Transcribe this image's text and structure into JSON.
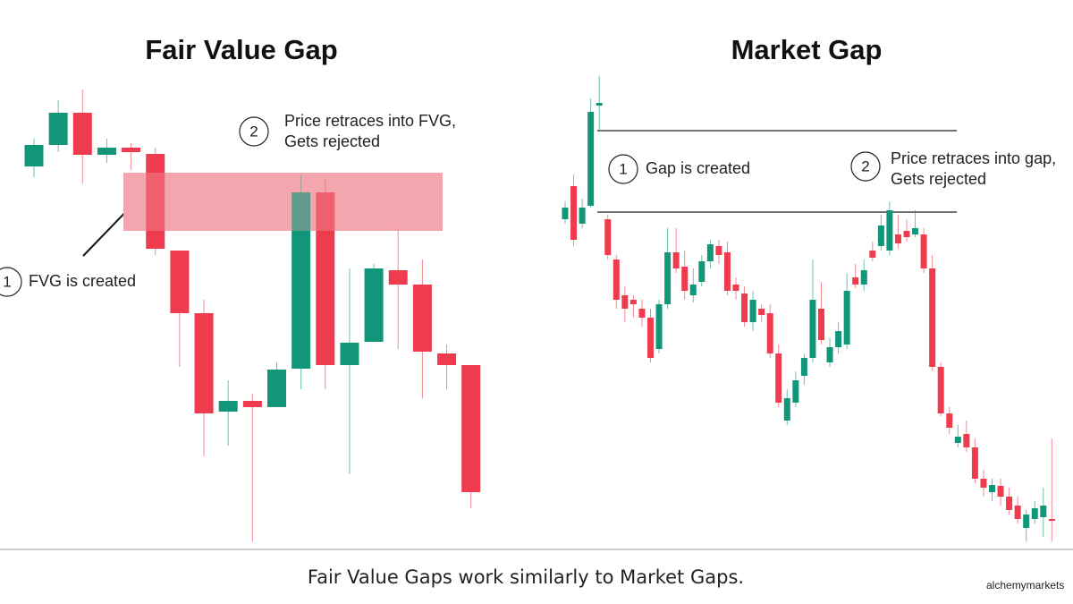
{
  "caption": "Fair Value Gaps work similarly to Market Gaps.",
  "watermark": "alchemymarkets",
  "chart_data": [
    {
      "type": "candlestick",
      "title": "Fair Value Gap",
      "ylim": [
        85,
        625
      ],
      "up_color": "#12967a",
      "down_color": "#ee3b4d",
      "zone_color": "#f4a6ae",
      "open": [
        514,
        538,
        574,
        527,
        535,
        528,
        420,
        350,
        240,
        252,
        245,
        288,
        485,
        292,
        318,
        398,
        382,
        305,
        292
      ],
      "high": [
        545,
        588,
        600,
        545,
        540,
        535,
        420,
        365,
        275,
        260,
        295,
        505,
        500,
        400,
        405,
        445,
        410,
        315,
        292
      ],
      "low": [
        502,
        530,
        495,
        518,
        510,
        415,
        290,
        190,
        202,
        95,
        245,
        265,
        265,
        170,
        318,
        310,
        255,
        265,
        132
      ],
      "close": [
        538,
        574,
        527,
        535,
        530,
        422,
        350,
        238,
        252,
        245,
        287,
        485,
        292,
        317,
        400,
        382,
        307,
        292,
        150
      ],
      "zone": [
        442,
        507
      ],
      "annotations": [
        {
          "label": "1",
          "text": [
            "FVG is created"
          ]
        },
        {
          "label": "2",
          "text": [
            "Price retraces into FVG,",
            "Gets rejected"
          ]
        }
      ]
    },
    {
      "type": "candlestick",
      "title": "Market Gap",
      "ylim": [
        85,
        625
      ],
      "up_color": "#12967a",
      "down_color": "#ee3b4d",
      "open": [
        455,
        492,
        450,
        470,
        582,
        455,
        410,
        370,
        365,
        355,
        345,
        310,
        360,
        418,
        402,
        370,
        385,
        408,
        425,
        418,
        382,
        372,
        340,
        355,
        350,
        305,
        230,
        250,
        280,
        300,
        355,
        295,
        312,
        315,
        390,
        382,
        420,
        425,
        420,
        438,
        442,
        438,
        438,
        400,
        290,
        238,
        205,
        215,
        200,
        165,
        150,
        157,
        145,
        135,
        110,
        120,
        122,
        120
      ],
      "high": [
        475,
        505,
        478,
        590,
        615,
        460,
        415,
        380,
        370,
        365,
        355,
        365,
        445,
        445,
        420,
        400,
        415,
        432,
        432,
        430,
        390,
        380,
        375,
        360,
        360,
        315,
        265,
        285,
        305,
        410,
        385,
        322,
        340,
        395,
        405,
        410,
        430,
        460,
        475,
        460,
        455,
        465,
        445,
        415,
        295,
        245,
        225,
        230,
        210,
        175,
        165,
        165,
        155,
        145,
        130,
        140,
        155,
        210
      ],
      "low": [
        450,
        425,
        445,
        468,
        555,
        410,
        355,
        340,
        345,
        335,
        295,
        305,
        355,
        395,
        365,
        362,
        380,
        400,
        405,
        370,
        365,
        335,
        330,
        340,
        300,
        245,
        225,
        245,
        270,
        295,
        315,
        290,
        305,
        310,
        378,
        375,
        408,
        420,
        415,
        422,
        430,
        435,
        395,
        285,
        235,
        215,
        200,
        195,
        160,
        145,
        140,
        135,
        125,
        115,
        95,
        115,
        100,
        95
      ],
      "close": [
        468,
        432,
        468,
        575,
        585,
        415,
        365,
        355,
        360,
        345,
        300,
        360,
        418,
        400,
        375,
        382,
        408,
        427,
        415,
        375,
        375,
        340,
        365,
        348,
        305,
        250,
        255,
        275,
        300,
        365,
        320,
        312,
        330,
        375,
        382,
        398,
        412,
        448,
        465,
        428,
        435,
        445,
        400,
        290,
        238,
        222,
        212,
        200,
        165,
        155,
        158,
        145,
        130,
        120,
        125,
        132,
        135,
        118
      ],
      "levels": [
        554,
        463
      ],
      "annotations": [
        {
          "label": "1",
          "text": [
            "Gap is created"
          ]
        },
        {
          "label": "2",
          "text": [
            "Price retraces into gap,",
            "Gets rejected"
          ]
        }
      ]
    }
  ]
}
